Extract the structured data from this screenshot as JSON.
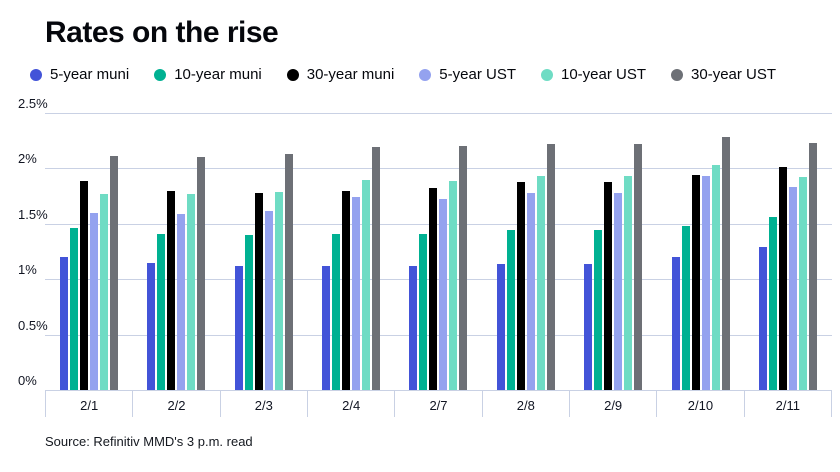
{
  "title": "Rates on the rise",
  "source": "Source: Refinitiv MMD's 3 p.m. read",
  "colors": {
    "gridline": "#c9d1e4",
    "axis_text": "#111522",
    "title_text": "#05070c",
    "background": "#ffffff"
  },
  "chart_data": {
    "type": "bar",
    "title": "Rates on the rise",
    "xlabel": "",
    "ylabel": "",
    "ylim": [
      0,
      2.5
    ],
    "yticks": [
      0,
      0.5,
      1,
      1.5,
      2,
      2.5
    ],
    "ytick_labels": [
      "0%",
      "0.5%",
      "1%",
      "1.5%",
      "2%",
      "2.5%"
    ],
    "grid": "horizontal",
    "legend_position": "top",
    "categories": [
      "2/1",
      "2/2",
      "2/3",
      "2/4",
      "2/7",
      "2/8",
      "2/9",
      "2/10",
      "2/11"
    ],
    "series": [
      {
        "name": "5-year muni",
        "color": "#4354d8",
        "values": [
          1.2,
          1.15,
          1.12,
          1.12,
          1.12,
          1.14,
          1.14,
          1.2,
          1.29
        ]
      },
      {
        "name": "10-year muni",
        "color": "#00b192",
        "values": [
          1.46,
          1.41,
          1.4,
          1.41,
          1.41,
          1.44,
          1.44,
          1.48,
          1.56
        ]
      },
      {
        "name": "30-year muni",
        "color": "#000000",
        "values": [
          1.89,
          1.8,
          1.78,
          1.8,
          1.82,
          1.88,
          1.88,
          1.94,
          2.01
        ]
      },
      {
        "name": "5-year UST",
        "color": "#94a2ef",
        "values": [
          1.6,
          1.59,
          1.62,
          1.74,
          1.72,
          1.78,
          1.78,
          1.93,
          1.83
        ]
      },
      {
        "name": "10-year UST",
        "color": "#6fdcc4",
        "values": [
          1.77,
          1.77,
          1.79,
          1.9,
          1.89,
          1.93,
          1.93,
          2.03,
          1.92
        ]
      },
      {
        "name": "30-year UST",
        "color": "#6d7076",
        "values": [
          2.11,
          2.1,
          2.13,
          2.19,
          2.2,
          2.22,
          2.22,
          2.28,
          2.23
        ]
      }
    ]
  }
}
